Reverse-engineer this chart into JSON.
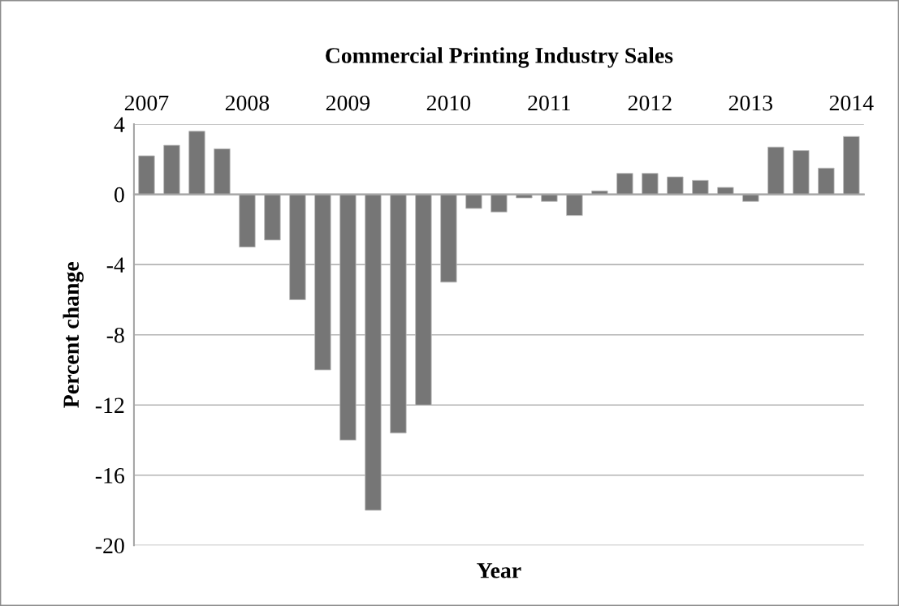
{
  "chart_data": {
    "type": "bar",
    "title": "Commercial Printing Industry Sales",
    "xlabel": "Year",
    "ylabel": "Percent change",
    "categories": [
      "2007",
      null,
      null,
      null,
      "2008",
      null,
      null,
      null,
      "2009",
      null,
      null,
      null,
      "2010",
      null,
      null,
      null,
      "2011",
      null,
      null,
      null,
      "2012",
      null,
      null,
      null,
      "2013",
      null,
      null,
      null,
      "2014"
    ],
    "values": [
      2.2,
      2.8,
      3.6,
      2.6,
      -3.0,
      -2.6,
      -6.0,
      -10.0,
      -14.0,
      -18.0,
      -13.6,
      -12.0,
      -5.0,
      -0.8,
      -1.0,
      -0.2,
      -0.4,
      -1.2,
      0.2,
      1.2,
      1.2,
      1.0,
      0.8,
      0.4,
      -0.4,
      2.7,
      2.5,
      1.5,
      3.3
    ],
    "color": "#767676",
    "ylim": [
      -20,
      4
    ],
    "yticks": [
      -20,
      -16,
      -12,
      -8,
      -4,
      0,
      4
    ],
    "grid": "y",
    "legend": false
  }
}
